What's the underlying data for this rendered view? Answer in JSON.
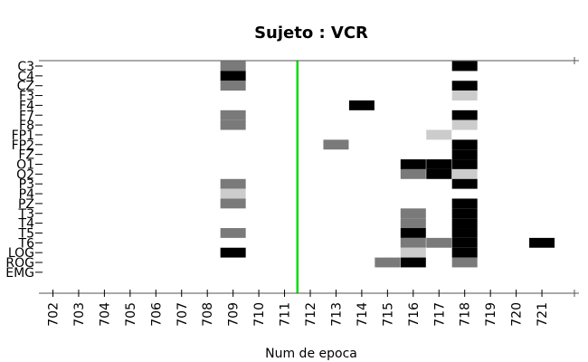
{
  "chart_data": {
    "type": "heatmap",
    "title": "Sujeto : VCR",
    "xlabel": "Num de epoca",
    "ylabel": "",
    "x_categories": [
      "702",
      "703",
      "704",
      "705",
      "706",
      "707",
      "708",
      "709",
      "710",
      "711",
      "712",
      "713",
      "714",
      "715",
      "716",
      "717",
      "718",
      "719",
      "720",
      "721"
    ],
    "y_categories": [
      "C3",
      "C4",
      "CZ",
      "F3",
      "F4",
      "F7",
      "F8",
      "FP1",
      "FP2",
      "FZ",
      "O1",
      "O2",
      "P3",
      "P4",
      "PZ",
      "T3",
      "T4",
      "T5",
      "T6",
      "LOG",
      "ROG",
      "EMG"
    ],
    "marker_line": {
      "x": 711.5,
      "color": "#00dd00"
    },
    "colors": {
      "black": "#000000",
      "dark_gray": "#7a7a7a",
      "light_gray": "#cccccc"
    },
    "cells": [
      {
        "x": "709",
        "y": "C3",
        "shade": "dark_gray"
      },
      {
        "x": "718",
        "y": "C3",
        "shade": "black"
      },
      {
        "x": "709",
        "y": "C4",
        "shade": "black"
      },
      {
        "x": "709",
        "y": "CZ",
        "shade": "dark_gray"
      },
      {
        "x": "718",
        "y": "CZ",
        "shade": "black"
      },
      {
        "x": "718",
        "y": "F3",
        "shade": "light_gray"
      },
      {
        "x": "714",
        "y": "F4",
        "shade": "black"
      },
      {
        "x": "709",
        "y": "F7",
        "shade": "dark_gray"
      },
      {
        "x": "718",
        "y": "F7",
        "shade": "black"
      },
      {
        "x": "709",
        "y": "F8",
        "shade": "dark_gray"
      },
      {
        "x": "718",
        "y": "F8",
        "shade": "light_gray"
      },
      {
        "x": "717",
        "y": "FP1",
        "shade": "light_gray"
      },
      {
        "x": "713",
        "y": "FP2",
        "shade": "dark_gray"
      },
      {
        "x": "718",
        "y": "FP2",
        "shade": "black"
      },
      {
        "x": "718",
        "y": "FZ",
        "shade": "black"
      },
      {
        "x": "716",
        "y": "O1",
        "shade": "black"
      },
      {
        "x": "717",
        "y": "O1",
        "shade": "black"
      },
      {
        "x": "718",
        "y": "O1",
        "shade": "black"
      },
      {
        "x": "716",
        "y": "O2",
        "shade": "dark_gray"
      },
      {
        "x": "717",
        "y": "O2",
        "shade": "black"
      },
      {
        "x": "718",
        "y": "O2",
        "shade": "light_gray"
      },
      {
        "x": "709",
        "y": "P3",
        "shade": "dark_gray"
      },
      {
        "x": "718",
        "y": "P3",
        "shade": "black"
      },
      {
        "x": "709",
        "y": "P4",
        "shade": "light_gray"
      },
      {
        "x": "709",
        "y": "PZ",
        "shade": "dark_gray"
      },
      {
        "x": "718",
        "y": "PZ",
        "shade": "black"
      },
      {
        "x": "716",
        "y": "T3",
        "shade": "dark_gray"
      },
      {
        "x": "718",
        "y": "T3",
        "shade": "black"
      },
      {
        "x": "716",
        "y": "T4",
        "shade": "dark_gray"
      },
      {
        "x": "718",
        "y": "T4",
        "shade": "black"
      },
      {
        "x": "709",
        "y": "T5",
        "shade": "dark_gray"
      },
      {
        "x": "716",
        "y": "T5",
        "shade": "black"
      },
      {
        "x": "718",
        "y": "T5",
        "shade": "black"
      },
      {
        "x": "716",
        "y": "T6",
        "shade": "dark_gray"
      },
      {
        "x": "717",
        "y": "T6",
        "shade": "dark_gray"
      },
      {
        "x": "718",
        "y": "T6",
        "shade": "black"
      },
      {
        "x": "721",
        "y": "T6",
        "shade": "black"
      },
      {
        "x": "709",
        "y": "LOG",
        "shade": "black"
      },
      {
        "x": "716",
        "y": "LOG",
        "shade": "light_gray"
      },
      {
        "x": "718",
        "y": "LOG",
        "shade": "black"
      },
      {
        "x": "715",
        "y": "ROG",
        "shade": "dark_gray"
      },
      {
        "x": "716",
        "y": "ROG",
        "shade": "black"
      },
      {
        "x": "718",
        "y": "ROG",
        "shade": "dark_gray"
      }
    ]
  }
}
